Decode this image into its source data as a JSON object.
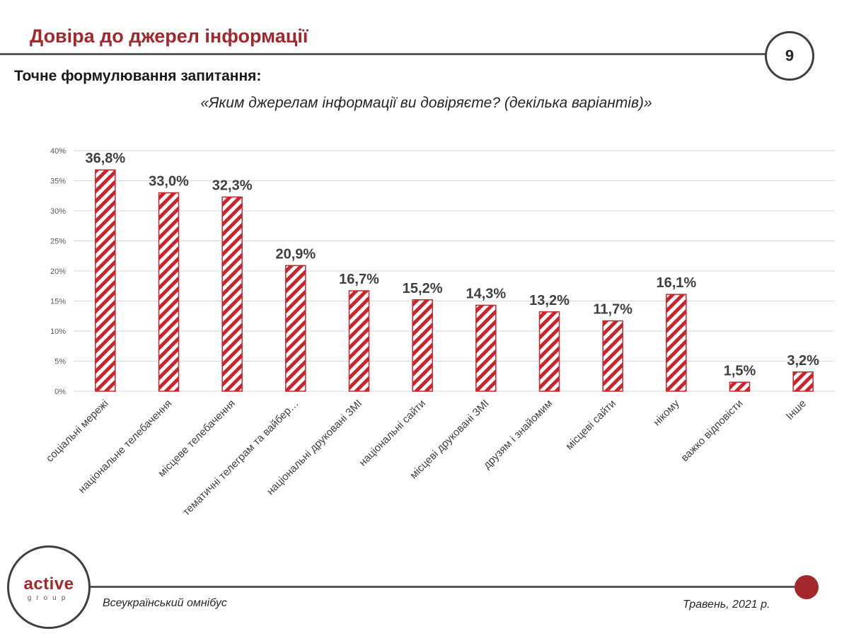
{
  "header": {
    "title": "Довіра до джерел інформації",
    "page_number": "9"
  },
  "question": {
    "label": "Точне формулювання запитання:",
    "text": "«Яким джерелам інформації ви довіряєте? (декілька варіантів)»"
  },
  "footer": {
    "left": "Всеукраїнський омнібус",
    "right": "Травень, 2021 р."
  },
  "logo": {
    "word": "active",
    "sub": "group"
  },
  "colors": {
    "accent": "#a3282c",
    "grid": "#d9d9d9",
    "text": "#404040"
  },
  "chart_data": {
    "type": "bar",
    "title": "",
    "xlabel": "",
    "ylabel": "",
    "ylim": [
      0,
      40
    ],
    "yticks": [
      "0%",
      "5%",
      "10%",
      "15%",
      "20%",
      "25%",
      "30%",
      "35%",
      "40%"
    ],
    "grid": true,
    "legend": "none",
    "bar_fill": "diagonal red stripes",
    "categories": [
      "соціальні мережі",
      "національне телебачення",
      "місцеве телебачення",
      "тематичні телеграм та вайбер…",
      "національні друковані ЗМІ",
      "національні сайти",
      "місцеві друковані ЗМІ",
      "друзям і знайомим",
      "місцеві сайти",
      "нікому",
      "важко відповісти",
      "Інше"
    ],
    "values": [
      36.8,
      33.0,
      32.3,
      20.9,
      16.7,
      15.2,
      14.3,
      13.2,
      11.7,
      16.1,
      1.5,
      3.2
    ],
    "value_labels": [
      "36,8%",
      "33,0%",
      "32,3%",
      "20,9%",
      "16,7%",
      "15,2%",
      "14,3%",
      "13,2%",
      "11,7%",
      "16,1%",
      "1,5%",
      "3,2%"
    ]
  }
}
